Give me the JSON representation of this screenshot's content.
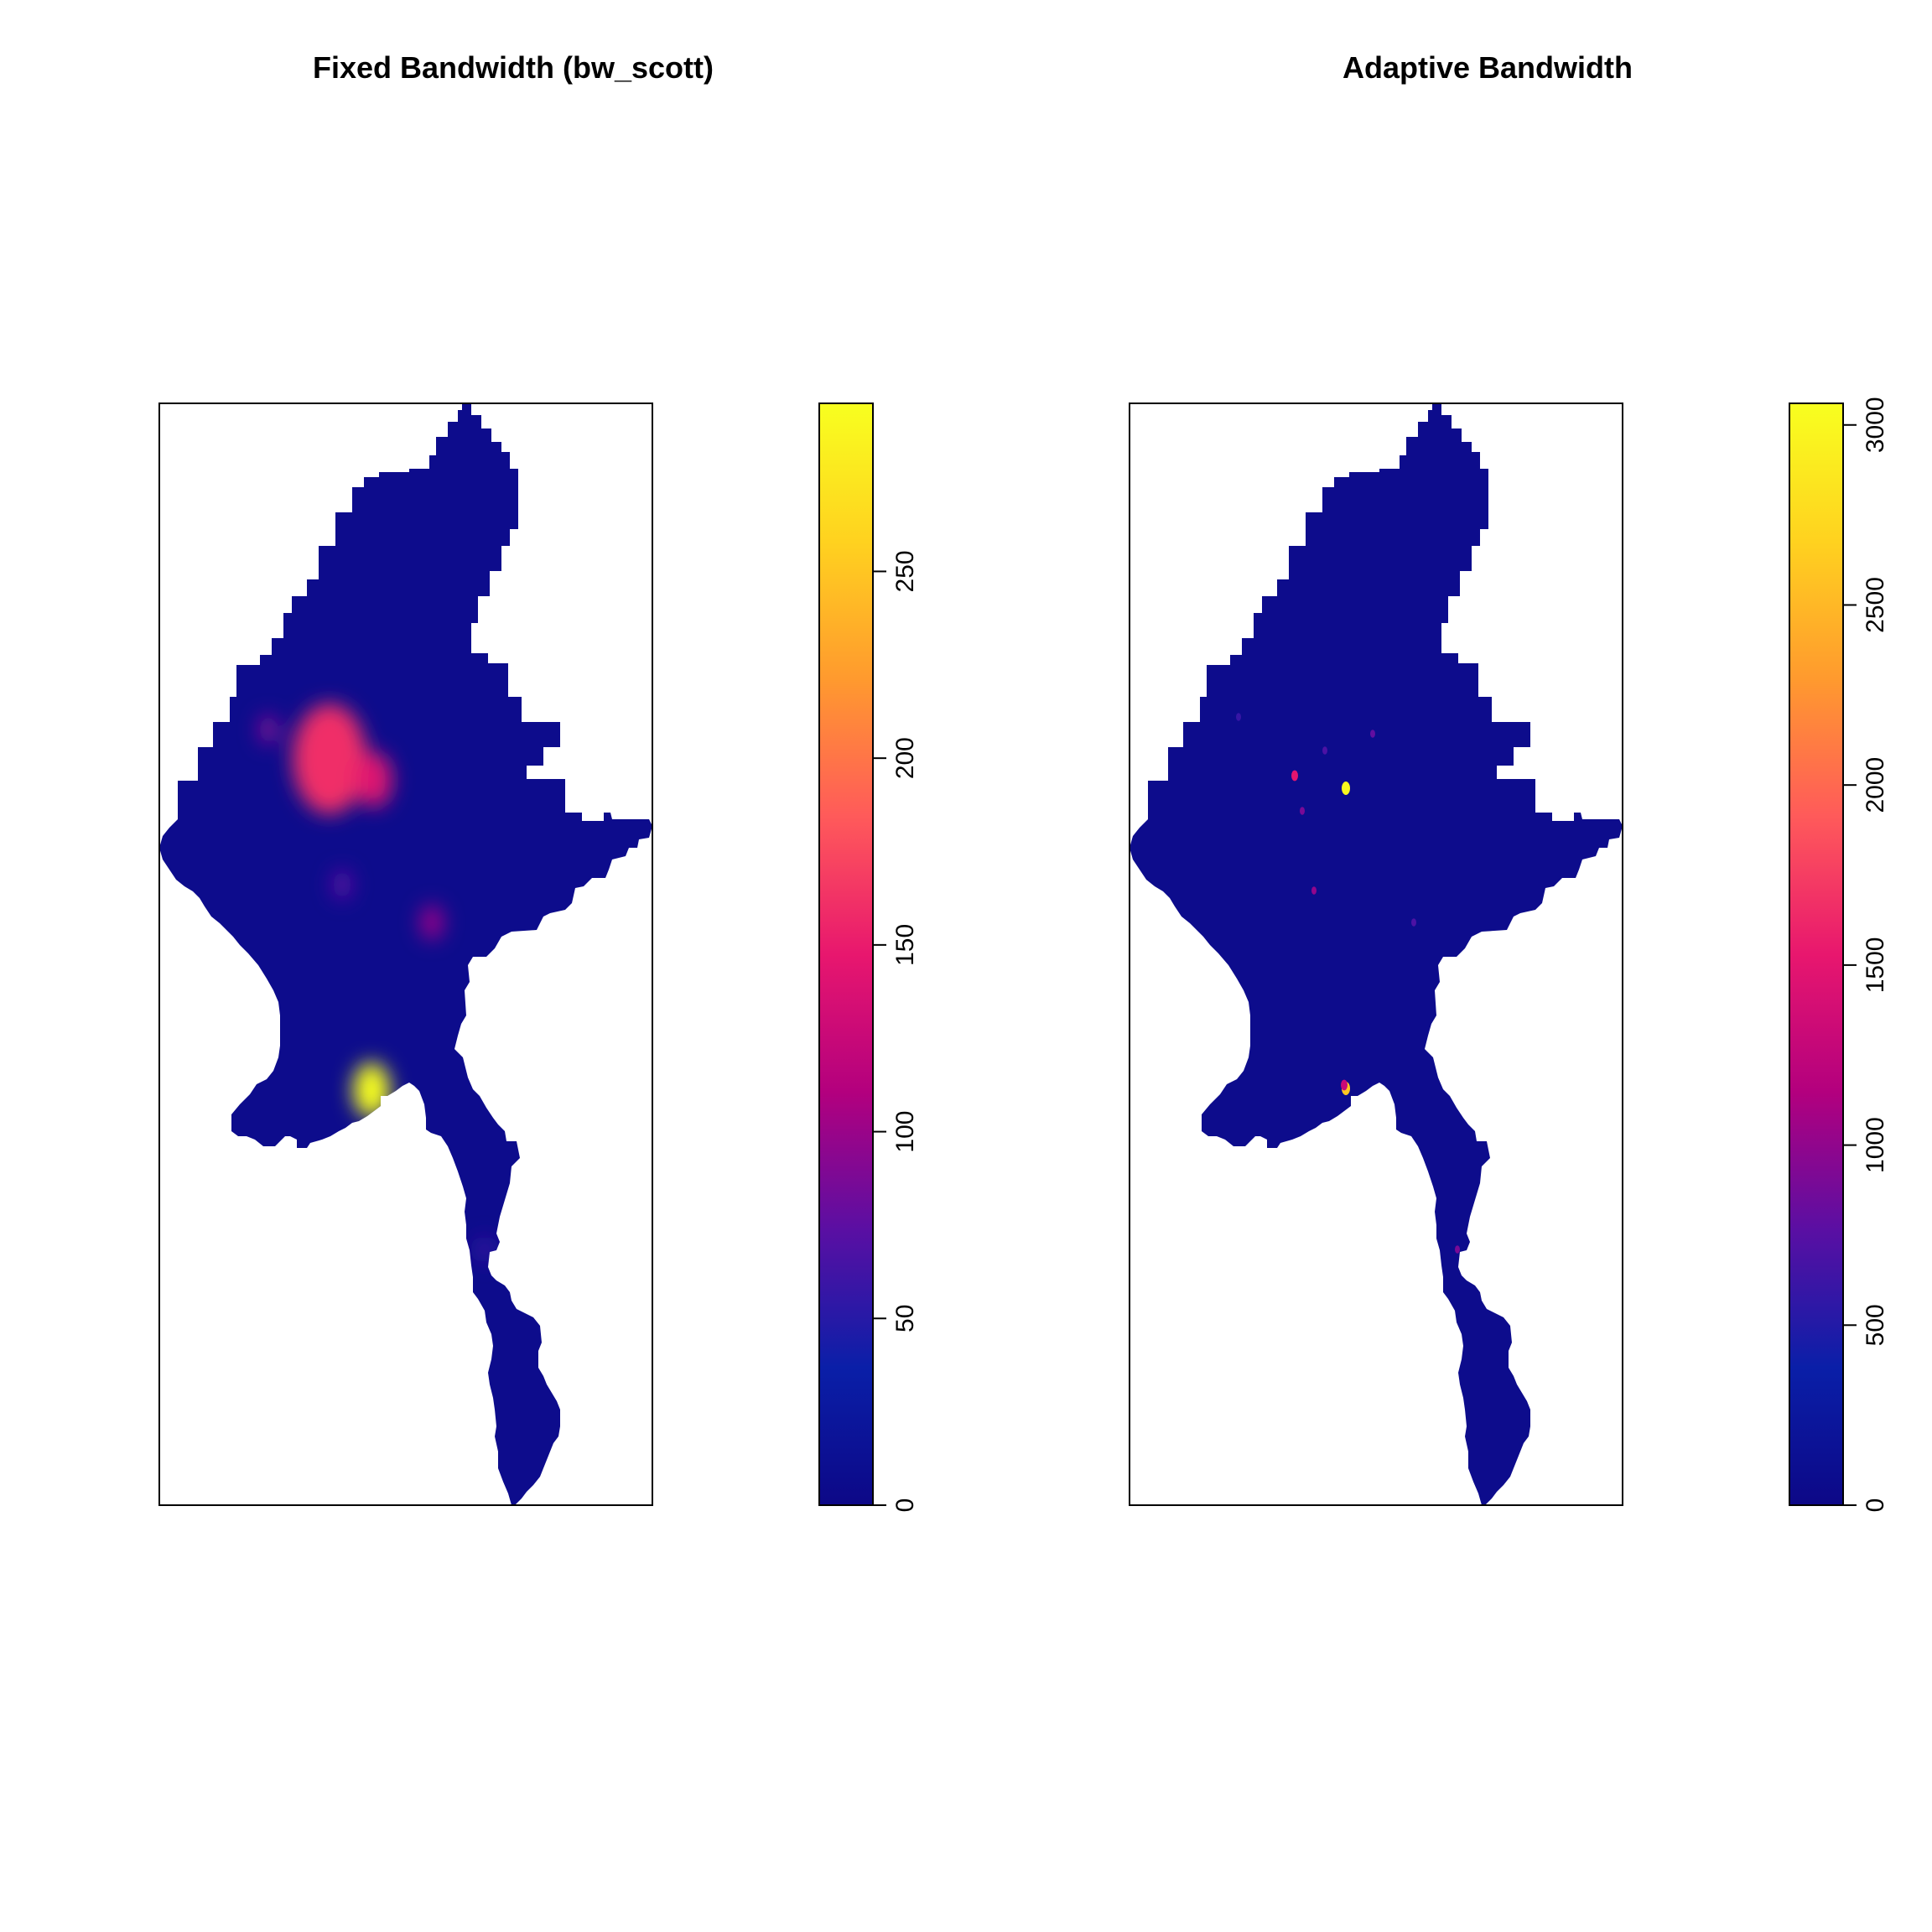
{
  "chart_data": [
    {
      "type": "heatmap",
      "title": "Fixed Bandwidth (bw_scott)",
      "xlabel": "",
      "ylabel": "",
      "axes_shown": false,
      "colorbar": {
        "min": 0,
        "max": 295,
        "ticks": [
          0,
          50,
          100,
          150,
          200,
          250
        ],
        "tick_labels": [
          "0",
          "50",
          "100",
          "150",
          "200",
          "250"
        ],
        "palette": [
          "#0d0887",
          "#0a1fa8",
          "#5a0fa3",
          "#b3007e",
          "#e8176e",
          "#ff5a5a",
          "#ff9a2e",
          "#ffd21f",
          "#f8ff1f"
        ]
      },
      "hotspots": [
        {
          "value": 295
        },
        {
          "value": 160
        },
        {
          "value": 140
        },
        {
          "value": 100
        },
        {
          "value": 90
        },
        {
          "value": 75
        },
        {
          "value": 60
        }
      ]
    },
    {
      "type": "heatmap",
      "title": "Adaptive Bandwidth",
      "xlabel": "",
      "ylabel": "",
      "axes_shown": false,
      "colorbar": {
        "min": 0,
        "max": 3060,
        "ticks": [
          0,
          500,
          1000,
          1500,
          2000,
          2500,
          3000
        ],
        "tick_labels": [
          "0",
          "500",
          "1000",
          "1500",
          "2000",
          "2500",
          "3000"
        ],
        "palette": [
          "#0d0887",
          "#0a1fa8",
          "#5a0fa3",
          "#b3007e",
          "#e8176e",
          "#ff5a5a",
          "#ff9a2e",
          "#ffd21f",
          "#f8ff1f"
        ]
      },
      "hotspots": [
        {
          "value": 3000
        },
        {
          "value": 2600
        },
        {
          "value": 1500
        },
        {
          "value": 1300
        },
        {
          "value": 1000
        },
        {
          "value": 900
        },
        {
          "value": 800
        },
        {
          "value": 700
        },
        {
          "value": 600
        },
        {
          "value": 700
        },
        {
          "value": 900
        }
      ]
    }
  ]
}
